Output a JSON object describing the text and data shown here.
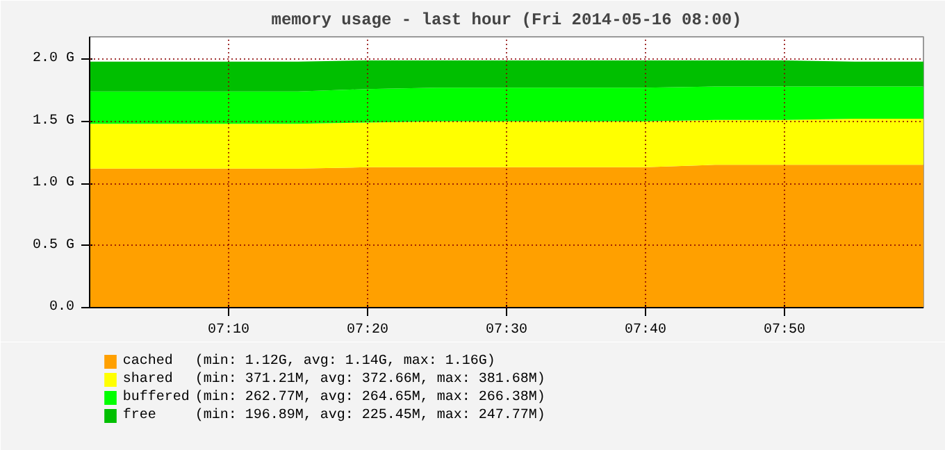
{
  "chart_data": {
    "type": "area",
    "stacked": true,
    "title": "memory usage - last hour (Fri 2014-05-16 08:00)",
    "x": [
      7.0,
      7.0833,
      7.1667,
      7.25,
      7.3333,
      7.4167,
      7.5,
      7.5833,
      7.6667,
      7.75,
      7.8333,
      7.9167,
      8.0
    ],
    "series": [
      {
        "name": "cached",
        "color": "#ffa000",
        "values": [
          1.12,
          1.12,
          1.12,
          1.12,
          1.13,
          1.13,
          1.13,
          1.13,
          1.13,
          1.15,
          1.15,
          1.15,
          1.15
        ]
      },
      {
        "name": "shared",
        "color": "#ffff00",
        "values": [
          0.36,
          0.36,
          0.36,
          0.36,
          0.36,
          0.37,
          0.37,
          0.37,
          0.37,
          0.36,
          0.36,
          0.37,
          0.37
        ]
      },
      {
        "name": "buffered",
        "color": "#00ff00",
        "values": [
          0.26,
          0.26,
          0.26,
          0.26,
          0.27,
          0.27,
          0.27,
          0.27,
          0.27,
          0.27,
          0.27,
          0.26,
          0.26
        ]
      },
      {
        "name": "free",
        "color": "#00bf00",
        "values": [
          0.24,
          0.24,
          0.24,
          0.24,
          0.23,
          0.22,
          0.22,
          0.22,
          0.22,
          0.21,
          0.21,
          0.2,
          0.2
        ]
      }
    ],
    "annotations": [
      "(min:    1.12G,  avg:    1.14G,   max:    1.16G)",
      "(min: 371.21M,  avg: 372.66M,   max: 381.68M)",
      "(min: 262.77M,  avg: 264.65M,   max: 266.38M)",
      "(min: 196.89M,  avg: 225.45M,   max: 247.77M)"
    ],
    "xlim": [
      7.0,
      8.0
    ],
    "ylim": [
      0,
      2.18
    ],
    "xticks": [
      {
        "value": 7.1667,
        "label": "07:10"
      },
      {
        "value": 7.3333,
        "label": "07:20"
      },
      {
        "value": 7.5,
        "label": "07:30"
      },
      {
        "value": 7.6667,
        "label": "07:40"
      },
      {
        "value": 7.8333,
        "label": "07:50"
      }
    ],
    "yticks": [
      {
        "value": 0,
        "label": "0.0"
      },
      {
        "value": 0.5,
        "label": "0.5 G"
      },
      {
        "value": 1.0,
        "label": "1.0 G"
      },
      {
        "value": 1.5,
        "label": "1.5 G"
      },
      {
        "value": 2.0,
        "label": "2.0 G"
      }
    ],
    "grid": true,
    "legend": "bottom"
  }
}
